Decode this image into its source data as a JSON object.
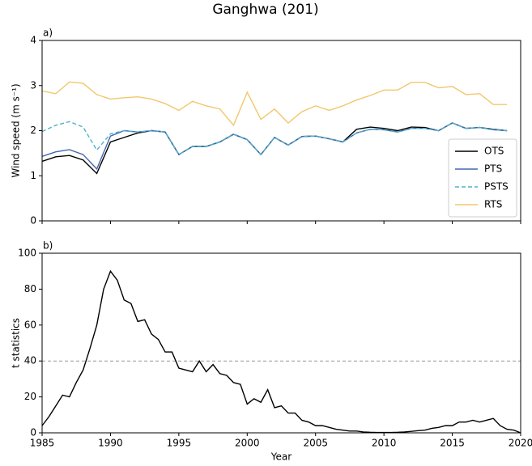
{
  "title": "Ganghwa (201)",
  "chart_data": [
    {
      "type": "line",
      "panel_label": "a)",
      "ylabel": "Wind speed (m s⁻¹)",
      "x": [
        1985,
        1986,
        1987,
        1988,
        1989,
        1990,
        1991,
        1992,
        1993,
        1994,
        1995,
        1996,
        1997,
        1998,
        1999,
        2000,
        2001,
        2002,
        2003,
        2004,
        2005,
        2006,
        2007,
        2008,
        2009,
        2010,
        2011,
        2012,
        2013,
        2014,
        2015,
        2016,
        2017,
        2018,
        2019
      ],
      "xlim": [
        1985,
        2020
      ],
      "ylim": [
        0,
        4
      ],
      "yticks": [
        0,
        1,
        2,
        3,
        4
      ],
      "legend": "lower right",
      "series": [
        {
          "name": "OTS",
          "color": "#000000",
          "linestyle": "solid",
          "values": [
            1.32,
            1.42,
            1.45,
            1.35,
            1.05,
            1.75,
            1.85,
            1.95,
            2.0,
            1.97,
            1.47,
            1.65,
            1.65,
            1.75,
            1.92,
            1.8,
            1.47,
            1.85,
            1.68,
            1.87,
            1.88,
            1.82,
            1.75,
            2.03,
            2.08,
            2.05,
            2.0,
            2.08,
            2.07,
            2.0,
            2.17,
            2.05,
            2.07,
            2.03,
            2.0
          ]
        },
        {
          "name": "PTS",
          "color": "#4466b0",
          "linestyle": "solid",
          "values": [
            1.43,
            1.53,
            1.58,
            1.47,
            1.15,
            1.88,
            2.0,
            1.97,
            2.0,
            1.97,
            1.47,
            1.65,
            1.65,
            1.75,
            1.92,
            1.8,
            1.47,
            1.85,
            1.68,
            1.87,
            1.88,
            1.82,
            1.75,
            1.95,
            2.03,
            2.02,
            1.97,
            2.05,
            2.05,
            2.0,
            2.17,
            2.05,
            2.07,
            2.02,
            2.0
          ]
        },
        {
          "name": "PSTS",
          "color": "#4db3c8",
          "linestyle": "dashed",
          "values": [
            1.98,
            2.12,
            2.2,
            2.08,
            1.57,
            1.93,
            2.0,
            1.97,
            2.0,
            1.97,
            1.47,
            1.65,
            1.65,
            1.75,
            1.92,
            1.8,
            1.47,
            1.85,
            1.68,
            1.87,
            1.88,
            1.82,
            1.75,
            1.95,
            2.03,
            2.02,
            1.97,
            2.05,
            2.05,
            2.0,
            2.17,
            2.05,
            2.07,
            2.02,
            2.0
          ]
        },
        {
          "name": "RTS",
          "color": "#f2c76b",
          "linestyle": "solid",
          "values": [
            2.88,
            2.82,
            3.08,
            3.05,
            2.8,
            2.7,
            2.73,
            2.75,
            2.7,
            2.6,
            2.45,
            2.65,
            2.55,
            2.48,
            2.12,
            2.85,
            2.25,
            2.48,
            2.17,
            2.42,
            2.55,
            2.45,
            2.55,
            2.68,
            2.78,
            2.9,
            2.9,
            3.07,
            3.07,
            2.95,
            2.98,
            2.8,
            2.82,
            2.58,
            2.58
          ]
        }
      ]
    },
    {
      "type": "line",
      "panel_label": "b)",
      "ylabel": "t statistics",
      "xlabel": "Year",
      "x": [
        1985,
        1985.5,
        1986,
        1986.5,
        1987,
        1987.5,
        1988,
        1988.5,
        1989,
        1989.5,
        1990,
        1990.5,
        1991,
        1991.5,
        1992,
        1992.5,
        1993,
        1993.5,
        1994,
        1994.5,
        1995,
        1995.5,
        1996,
        1996.5,
        1997,
        1997.5,
        1998,
        1998.5,
        1999,
        1999.5,
        2000,
        2000.5,
        2001,
        2001.5,
        2002,
        2002.5,
        2003,
        2003.5,
        2004,
        2004.5,
        2005,
        2005.5,
        2006,
        2006.5,
        2007,
        2007.5,
        2008,
        2008.5,
        2009,
        2009.5,
        2010,
        2010.5,
        2011,
        2011.5,
        2012,
        2012.5,
        2013,
        2013.5,
        2014,
        2014.5,
        2015,
        2015.5,
        2016,
        2016.5,
        2017,
        2017.5,
        2018,
        2018.5,
        2019,
        2019.5,
        2020
      ],
      "xlim": [
        1985,
        2020
      ],
      "xticks": [
        1985,
        1990,
        1995,
        2000,
        2005,
        2010,
        2015,
        2020
      ],
      "ylim": [
        0,
        100
      ],
      "yticks": [
        0,
        20,
        40,
        60,
        80,
        100
      ],
      "hline": 40,
      "series": [
        {
          "color": "#000000",
          "linestyle": "solid",
          "values": [
            4,
            9,
            15,
            21,
            20,
            28,
            35,
            47,
            60,
            80,
            90,
            85,
            74,
            72,
            62,
            63,
            55,
            52,
            45,
            45,
            36,
            35,
            34,
            40,
            34,
            38,
            33,
            32,
            28,
            27,
            16,
            19,
            17,
            24,
            14,
            15,
            11,
            11,
            7,
            6,
            4,
            4,
            3,
            2,
            1.5,
            1,
            1,
            0.5,
            0.3,
            0.2,
            0.2,
            0.2,
            0.3,
            0.5,
            0.8,
            1.2,
            1.5,
            2.5,
            3,
            4,
            4,
            6,
            6,
            7,
            6,
            7,
            8,
            4,
            2,
            1.5,
            0
          ]
        }
      ]
    }
  ]
}
